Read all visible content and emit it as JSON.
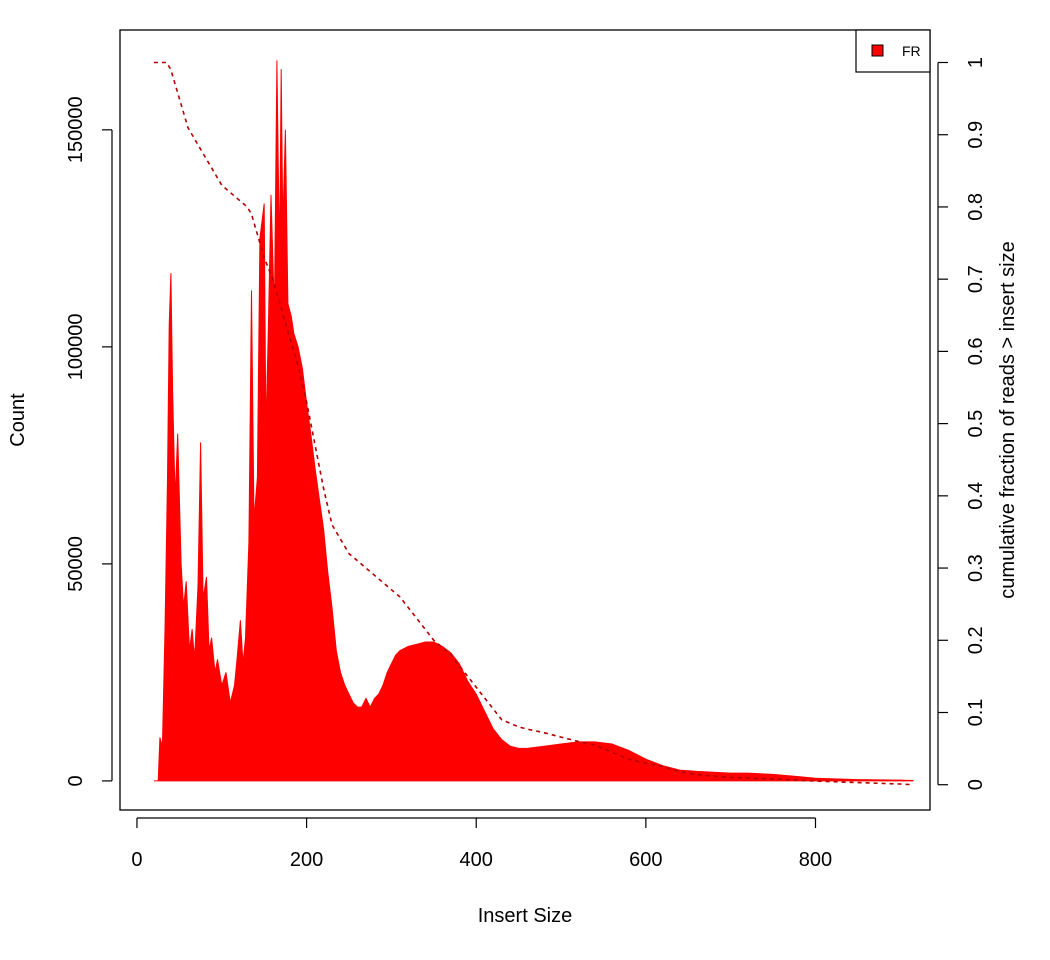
{
  "chart_data": {
    "type": "area",
    "xlabel": "Insert Size",
    "ylabel": "Count",
    "y2label": "cumulative fraction of reads > insert size",
    "xlim": [
      -20,
      935
    ],
    "ylim": [
      -6700,
      173000
    ],
    "y2lim": [
      -0.035,
      1.045
    ],
    "xticks": [
      0,
      200,
      400,
      600,
      800
    ],
    "yticks": [
      0,
      50000,
      100000,
      150000
    ],
    "y2ticks": [
      0,
      0.1,
      0.2,
      0.3,
      0.4,
      0.5,
      0.6,
      0.7,
      0.8,
      0.9,
      1
    ],
    "grid": false,
    "legend": {
      "placement": "top-right",
      "entries": [
        {
          "label": "FR",
          "color": "#ff0000"
        }
      ]
    },
    "series": [
      {
        "name": "FR",
        "kind": "histogram",
        "color": "#ff0000",
        "x": [
          20,
          25,
          27,
          30,
          33,
          36,
          38,
          40,
          42,
          45,
          48,
          52,
          55,
          58,
          62,
          65,
          68,
          72,
          75,
          78,
          82,
          85,
          88,
          92,
          95,
          100,
          105,
          110,
          115,
          118,
          122,
          125,
          128,
          132,
          135,
          138,
          142,
          145,
          150,
          152,
          155,
          158,
          162,
          165,
          168,
          170,
          172,
          175,
          178,
          182,
          185,
          190,
          195,
          200,
          205,
          210,
          215,
          220,
          225,
          230,
          235,
          240,
          245,
          250,
          255,
          260,
          265,
          270,
          275,
          280,
          285,
          290,
          295,
          300,
          305,
          310,
          320,
          330,
          340,
          350,
          360,
          370,
          380,
          390,
          400,
          410,
          420,
          430,
          440,
          450,
          460,
          480,
          500,
          520,
          540,
          560,
          580,
          600,
          620,
          640,
          660,
          680,
          700,
          720,
          750,
          780,
          800,
          850,
          900,
          915
        ],
        "values": [
          0,
          0,
          10000,
          8000,
          35000,
          70000,
          105000,
          117000,
          90000,
          65000,
          80000,
          50000,
          40000,
          46000,
          30000,
          35000,
          28000,
          45000,
          78000,
          42000,
          47000,
          30000,
          33000,
          25000,
          28000,
          22000,
          25000,
          18000,
          22000,
          28000,
          37000,
          27000,
          33000,
          55000,
          113000,
          60000,
          70000,
          125000,
          133000,
          80000,
          105000,
          135000,
          108000,
          166000,
          120000,
          164000,
          128000,
          150000,
          110000,
          107000,
          103000,
          100000,
          95000,
          87000,
          80000,
          72000,
          65000,
          58000,
          48000,
          40000,
          30000,
          25000,
          22000,
          20000,
          18000,
          17000,
          17000,
          19000,
          17000,
          19000,
          20000,
          22000,
          25000,
          27000,
          29000,
          30000,
          31000,
          31500,
          32000,
          32000,
          31000,
          29500,
          27000,
          23000,
          20000,
          16000,
          12000,
          9500,
          8000,
          7500,
          7500,
          8000,
          8500,
          9000,
          9000,
          8500,
          7000,
          5000,
          3500,
          2500,
          2200,
          2000,
          1800,
          1800,
          1500,
          1000,
          600,
          300,
          200,
          100
        ]
      },
      {
        "name": "FR",
        "kind": "cumulative",
        "axis": "right",
        "color": "#b30000",
        "x": [
          20,
          35,
          40,
          45,
          50,
          60,
          70,
          80,
          90,
          100,
          110,
          120,
          130,
          135,
          140,
          145,
          150,
          160,
          170,
          180,
          190,
          200,
          210,
          220,
          230,
          240,
          250,
          260,
          270,
          280,
          290,
          300,
          310,
          320,
          330,
          340,
          350,
          360,
          370,
          380,
          390,
          400,
          410,
          420,
          430,
          440,
          450,
          460,
          480,
          500,
          520,
          540,
          560,
          580,
          600,
          620,
          640,
          660,
          680,
          700,
          750,
          800,
          850,
          900,
          915
        ],
        "values": [
          1.0,
          1.0,
          0.99,
          0.97,
          0.95,
          0.91,
          0.89,
          0.87,
          0.85,
          0.83,
          0.82,
          0.81,
          0.8,
          0.79,
          0.77,
          0.75,
          0.73,
          0.7,
          0.66,
          0.62,
          0.58,
          0.53,
          0.47,
          0.41,
          0.36,
          0.34,
          0.32,
          0.31,
          0.3,
          0.29,
          0.28,
          0.27,
          0.26,
          0.245,
          0.23,
          0.215,
          0.2,
          0.19,
          0.18,
          0.165,
          0.15,
          0.135,
          0.12,
          0.105,
          0.09,
          0.085,
          0.08,
          0.077,
          0.072,
          0.066,
          0.06,
          0.055,
          0.045,
          0.035,
          0.03,
          0.025,
          0.018,
          0.014,
          0.012,
          0.01,
          0.008,
          0.005,
          0.003,
          0.001,
          0.0
        ]
      }
    ]
  }
}
